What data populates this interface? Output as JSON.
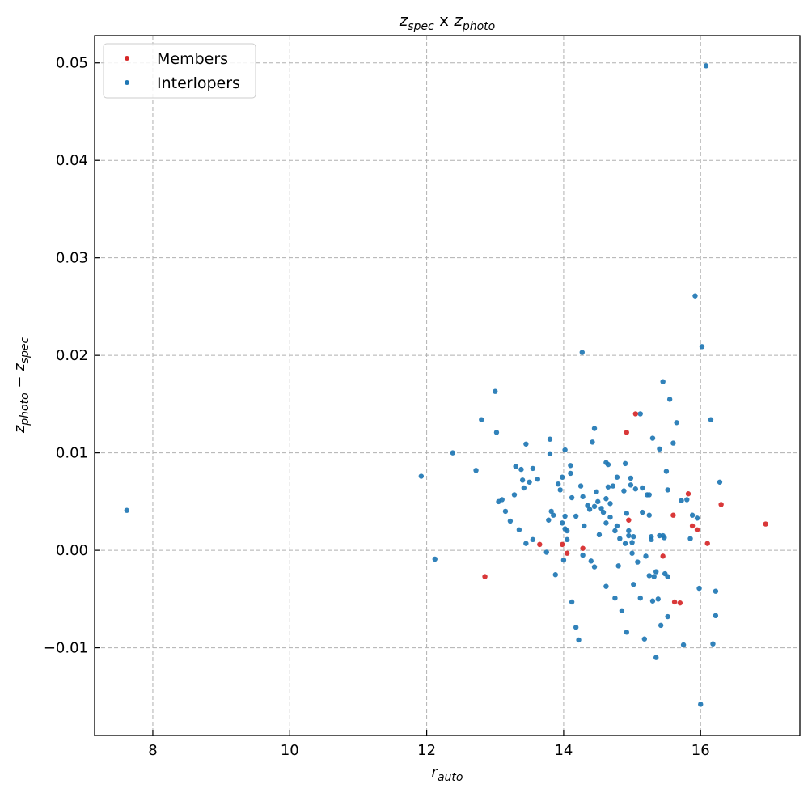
{
  "chart_data": {
    "type": "scatter",
    "title": {
      "base1": "z",
      "sub1": "spec",
      "mid": " x ",
      "base2": "z",
      "sub2": "photo"
    },
    "xlabel": {
      "base": "r",
      "sub": "auto"
    },
    "ylabel": {
      "base1": "z",
      "sub1": "photo",
      "op": " − ",
      "base2": "z",
      "sub2": "spec"
    },
    "xlim": [
      7.15,
      17.45
    ],
    "ylim": [
      -0.019,
      0.0528
    ],
    "xticks": [
      8,
      10,
      12,
      14,
      16
    ],
    "xtick_labels": [
      "8",
      "10",
      "12",
      "14",
      "16"
    ],
    "yticks": [
      -0.01,
      0.0,
      0.01,
      0.02,
      0.03,
      0.04,
      0.05
    ],
    "ytick_labels": [
      "−0.01",
      "0.00",
      "0.01",
      "0.02",
      "0.03",
      "0.04",
      "0.05"
    ],
    "grid": true,
    "legend_position": "top-left",
    "colors": {
      "members": "#d62728",
      "interlopers": "#1f77b4"
    },
    "series": [
      {
        "name": "Members",
        "color": "#d62728",
        "points": [
          [
            12.85,
            -0.0027
          ],
          [
            13.65,
            0.0006
          ],
          [
            13.98,
            0.0006
          ],
          [
            14.05,
            -0.0003
          ],
          [
            14.28,
            0.0002
          ],
          [
            14.92,
            0.0121
          ],
          [
            14.95,
            0.0031
          ],
          [
            15.05,
            0.014
          ],
          [
            15.45,
            -0.0006
          ],
          [
            15.6,
            0.0036
          ],
          [
            15.62,
            -0.0053
          ],
          [
            15.7,
            -0.0054
          ],
          [
            15.82,
            0.0058
          ],
          [
            15.88,
            0.0025
          ],
          [
            15.95,
            0.0021
          ],
          [
            16.1,
            0.0007
          ],
          [
            16.3,
            0.0047
          ],
          [
            16.95,
            0.0027
          ]
        ]
      },
      {
        "name": "Interlopers",
        "color": "#1f77b4",
        "points": [
          [
            7.62,
            0.0041
          ],
          [
            11.92,
            0.0076
          ],
          [
            12.12,
            -0.0009
          ],
          [
            12.38,
            0.01
          ],
          [
            12.72,
            0.0082
          ],
          [
            12.8,
            0.0134
          ],
          [
            13.0,
            0.0163
          ],
          [
            13.02,
            0.0121
          ],
          [
            13.05,
            0.005
          ],
          [
            13.1,
            0.0052
          ],
          [
            13.15,
            0.004
          ],
          [
            13.22,
            0.003
          ],
          [
            13.28,
            0.0057
          ],
          [
            13.3,
            0.0086
          ],
          [
            13.35,
            0.0021
          ],
          [
            13.38,
            0.0083
          ],
          [
            13.4,
            0.0072
          ],
          [
            13.42,
            0.0064
          ],
          [
            13.45,
            0.0109
          ],
          [
            13.45,
            0.0007
          ],
          [
            13.5,
            0.007
          ],
          [
            13.55,
            0.0084
          ],
          [
            13.55,
            0.0011
          ],
          [
            13.62,
            0.0073
          ],
          [
            13.75,
            -0.0002
          ],
          [
            13.78,
            0.0031
          ],
          [
            13.8,
            0.0114
          ],
          [
            13.8,
            0.0099
          ],
          [
            13.82,
            0.004
          ],
          [
            13.85,
            0.0036
          ],
          [
            13.88,
            -0.0025
          ],
          [
            13.92,
            0.0068
          ],
          [
            13.95,
            0.0062
          ],
          [
            13.98,
            0.0075
          ],
          [
            13.98,
            0.0028
          ],
          [
            14.0,
            -0.001
          ],
          [
            14.02,
            0.0103
          ],
          [
            14.02,
            0.0035
          ],
          [
            14.02,
            0.0022
          ],
          [
            14.05,
            0.002
          ],
          [
            14.05,
            0.0011
          ],
          [
            14.1,
            0.0087
          ],
          [
            14.1,
            0.0079
          ],
          [
            14.12,
            0.0054
          ],
          [
            14.12,
            -0.0053
          ],
          [
            14.18,
            0.0035
          ],
          [
            14.18,
            -0.0079
          ],
          [
            14.22,
            -0.0092
          ],
          [
            14.25,
            0.0066
          ],
          [
            14.27,
            0.0203
          ],
          [
            14.28,
            0.0055
          ],
          [
            14.28,
            -0.0005
          ],
          [
            14.3,
            0.0025
          ],
          [
            14.35,
            0.0046
          ],
          [
            14.38,
            0.0042
          ],
          [
            14.4,
            -0.0011
          ],
          [
            14.42,
            0.0111
          ],
          [
            14.45,
            0.0125
          ],
          [
            14.45,
            0.0045
          ],
          [
            14.45,
            -0.0017
          ],
          [
            14.48,
            0.006
          ],
          [
            14.5,
            0.005
          ],
          [
            14.52,
            0.0016
          ],
          [
            14.55,
            0.0043
          ],
          [
            14.58,
            0.0039
          ],
          [
            14.62,
            0.009
          ],
          [
            14.62,
            0.0053
          ],
          [
            14.62,
            0.0028
          ],
          [
            14.62,
            -0.0037
          ],
          [
            14.65,
            0.0088
          ],
          [
            14.65,
            0.0065
          ],
          [
            14.68,
            0.0048
          ],
          [
            14.68,
            0.0034
          ],
          [
            14.72,
            0.0066
          ],
          [
            14.75,
            0.002
          ],
          [
            14.75,
            -0.0049
          ],
          [
            14.78,
            0.0075
          ],
          [
            14.78,
            0.0025
          ],
          [
            14.8,
            -0.0016
          ],
          [
            14.82,
            0.0012
          ],
          [
            14.85,
            -0.0062
          ],
          [
            14.88,
            0.0061
          ],
          [
            14.9,
            0.0089
          ],
          [
            14.9,
            0.0007
          ],
          [
            14.92,
            0.0038
          ],
          [
            14.92,
            -0.0084
          ],
          [
            14.95,
            0.002
          ],
          [
            14.95,
            0.0015
          ],
          [
            14.98,
            0.0074
          ],
          [
            14.98,
            0.0067
          ],
          [
            15.0,
            0.0008
          ],
          [
            15.0,
            -0.0003
          ],
          [
            15.02,
            0.0014
          ],
          [
            15.02,
            -0.0035
          ],
          [
            15.05,
            0.0063
          ],
          [
            15.08,
            -0.0012
          ],
          [
            15.12,
            0.014
          ],
          [
            15.12,
            -0.0049
          ],
          [
            15.15,
            0.0064
          ],
          [
            15.15,
            0.0039
          ],
          [
            15.18,
            -0.0091
          ],
          [
            15.2,
            -0.0006
          ],
          [
            15.22,
            0.0057
          ],
          [
            15.25,
            0.0057
          ],
          [
            15.25,
            0.0036
          ],
          [
            15.25,
            -0.0026
          ],
          [
            15.28,
            0.0014
          ],
          [
            15.28,
            0.0011
          ],
          [
            15.3,
            0.0115
          ],
          [
            15.3,
            -0.0052
          ],
          [
            15.32,
            -0.0027
          ],
          [
            15.35,
            -0.011
          ],
          [
            15.35,
            -0.0022
          ],
          [
            15.38,
            -0.005
          ],
          [
            15.4,
            0.0104
          ],
          [
            15.4,
            0.0015
          ],
          [
            15.42,
            -0.0077
          ],
          [
            15.45,
            0.0173
          ],
          [
            15.45,
            0.0015
          ],
          [
            15.47,
            0.0013
          ],
          [
            15.48,
            -0.0024
          ],
          [
            15.5,
            0.0081
          ],
          [
            15.52,
            0.0062
          ],
          [
            15.52,
            -0.0027
          ],
          [
            15.52,
            -0.0068
          ],
          [
            15.55,
            0.0155
          ],
          [
            15.6,
            0.011
          ],
          [
            15.65,
            0.0131
          ],
          [
            15.72,
            0.0051
          ],
          [
            15.75,
            -0.0097
          ],
          [
            15.8,
            0.0052
          ],
          [
            15.85,
            0.0012
          ],
          [
            15.88,
            0.0036
          ],
          [
            15.92,
            0.0261
          ],
          [
            15.95,
            0.0033
          ],
          [
            15.98,
            -0.0039
          ],
          [
            16.0,
            -0.0158
          ],
          [
            16.02,
            0.0209
          ],
          [
            16.08,
            0.0497
          ],
          [
            16.15,
            0.0134
          ],
          [
            16.18,
            -0.0096
          ],
          [
            16.22,
            -0.0042
          ],
          [
            16.22,
            -0.0067
          ],
          [
            16.28,
            0.007
          ]
        ]
      }
    ]
  }
}
